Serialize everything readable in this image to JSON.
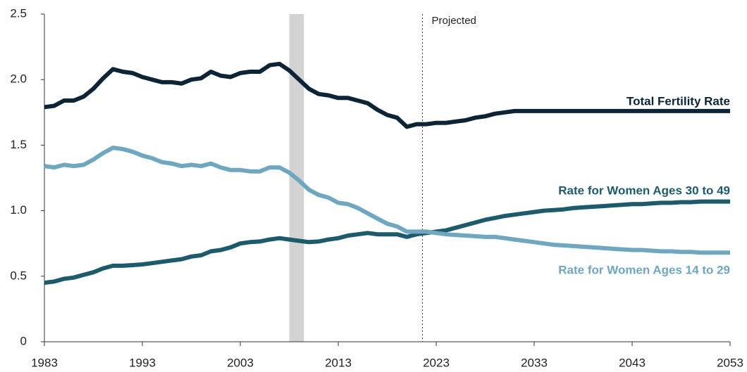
{
  "chart_data": {
    "type": "line",
    "x": [
      1983,
      1984,
      1985,
      1986,
      1987,
      1988,
      1989,
      1990,
      1991,
      1992,
      1993,
      1994,
      1995,
      1996,
      1997,
      1998,
      1999,
      2000,
      2001,
      2002,
      2003,
      2004,
      2005,
      2006,
      2007,
      2008,
      2009,
      2010,
      2011,
      2012,
      2013,
      2014,
      2015,
      2016,
      2017,
      2018,
      2019,
      2020,
      2021,
      2022,
      2023,
      2024,
      2025,
      2026,
      2027,
      2028,
      2029,
      2030,
      2031,
      2032,
      2033,
      2034,
      2035,
      2036,
      2037,
      2038,
      2039,
      2040,
      2041,
      2042,
      2043,
      2044,
      2045,
      2046,
      2047,
      2048,
      2049,
      2050,
      2051,
      2052,
      2053
    ],
    "series": [
      {
        "name": "Total Fertility Rate",
        "color": "#0c2435",
        "values": [
          1.79,
          1.8,
          1.84,
          1.84,
          1.87,
          1.93,
          2.01,
          2.08,
          2.06,
          2.05,
          2.02,
          2.0,
          1.98,
          1.98,
          1.97,
          2.0,
          2.01,
          2.06,
          2.03,
          2.02,
          2.05,
          2.06,
          2.06,
          2.11,
          2.12,
          2.07,
          2.0,
          1.93,
          1.89,
          1.88,
          1.86,
          1.86,
          1.84,
          1.82,
          1.77,
          1.73,
          1.71,
          1.64,
          1.66,
          1.66,
          1.67,
          1.67,
          1.68,
          1.69,
          1.71,
          1.72,
          1.74,
          1.75,
          1.76,
          1.76,
          1.76,
          1.76,
          1.76,
          1.76,
          1.76,
          1.76,
          1.76,
          1.76,
          1.76,
          1.76,
          1.76,
          1.76,
          1.76,
          1.76,
          1.76,
          1.76,
          1.76,
          1.76,
          1.76,
          1.76,
          1.76
        ]
      },
      {
        "name": "Rate for Women Ages 30 to 49",
        "color": "#1d5a6c",
        "values": [
          0.45,
          0.46,
          0.48,
          0.49,
          0.51,
          0.53,
          0.56,
          0.58,
          0.58,
          0.585,
          0.59,
          0.6,
          0.61,
          0.62,
          0.63,
          0.65,
          0.66,
          0.69,
          0.7,
          0.72,
          0.75,
          0.76,
          0.765,
          0.78,
          0.79,
          0.78,
          0.77,
          0.76,
          0.765,
          0.78,
          0.79,
          0.81,
          0.82,
          0.83,
          0.82,
          0.82,
          0.82,
          0.8,
          0.82,
          0.83,
          0.84,
          0.85,
          0.87,
          0.89,
          0.91,
          0.93,
          0.945,
          0.96,
          0.97,
          0.98,
          0.99,
          1.0,
          1.005,
          1.01,
          1.02,
          1.025,
          1.03,
          1.035,
          1.04,
          1.045,
          1.05,
          1.05,
          1.055,
          1.06,
          1.06,
          1.065,
          1.065,
          1.07,
          1.07,
          1.07,
          1.07
        ]
      },
      {
        "name": "Rate for Women Ages 14 to 29",
        "color": "#6ea7bf",
        "values": [
          1.34,
          1.33,
          1.35,
          1.34,
          1.35,
          1.39,
          1.44,
          1.48,
          1.47,
          1.45,
          1.42,
          1.4,
          1.37,
          1.36,
          1.34,
          1.35,
          1.34,
          1.36,
          1.33,
          1.31,
          1.31,
          1.3,
          1.3,
          1.33,
          1.33,
          1.29,
          1.23,
          1.16,
          1.12,
          1.1,
          1.06,
          1.05,
          1.02,
          0.98,
          0.94,
          0.9,
          0.88,
          0.84,
          0.84,
          0.84,
          0.83,
          0.82,
          0.815,
          0.81,
          0.805,
          0.8,
          0.8,
          0.79,
          0.78,
          0.77,
          0.76,
          0.75,
          0.74,
          0.735,
          0.73,
          0.725,
          0.72,
          0.715,
          0.71,
          0.705,
          0.7,
          0.7,
          0.695,
          0.69,
          0.69,
          0.685,
          0.685,
          0.68,
          0.68,
          0.68,
          0.68
        ]
      }
    ],
    "xlim": [
      1983,
      2053
    ],
    "xticks": [
      1983,
      1993,
      2003,
      2013,
      2023,
      2033,
      2043,
      2053
    ],
    "ylim": [
      0,
      2.5
    ],
    "yticks": [
      0,
      0.5,
      {
        "value": 1,
        "label": "1.0"
      },
      1.5,
      {
        "value": 2,
        "label": "2.0"
      },
      2.5
    ],
    "shade": [
      2008,
      2009.5
    ],
    "shade_color": "#d3d3d3",
    "projection_start": 2021.6,
    "projection_label": "Projected"
  }
}
